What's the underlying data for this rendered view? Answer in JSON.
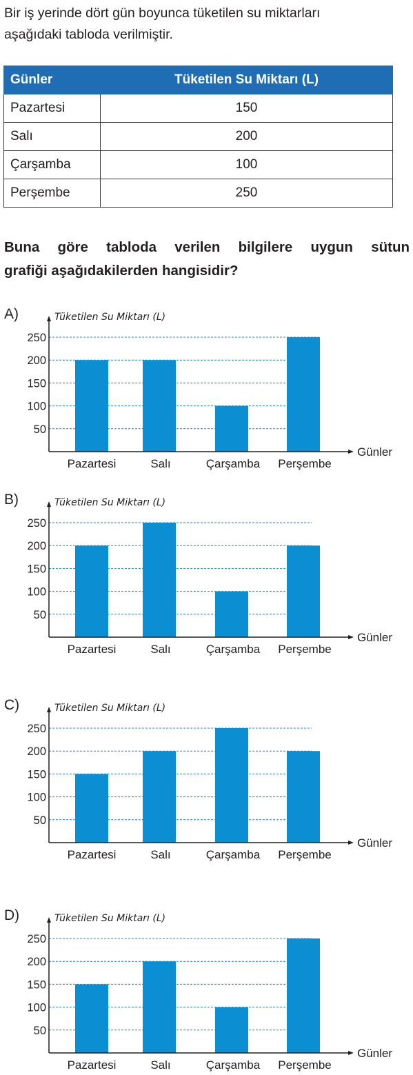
{
  "intro": {
    "line1": "Bir iş yerinde dört gün boyunca tüketilen su miktarları",
    "line2": "aşağıdaki tabloda verilmiştir."
  },
  "table": {
    "header": [
      "Günler",
      "Tüketilen Su Miktarı (L)"
    ],
    "rows": [
      [
        "Pazartesi",
        "150"
      ],
      [
        "Salı",
        "200"
      ],
      [
        "Çarşamba",
        "100"
      ],
      [
        "Perşembe",
        "250"
      ]
    ],
    "header_color": "#1f6db5"
  },
  "question": {
    "line1": "Buna göre tabloda verilen bilgilere uygun sütun",
    "line2": "grafiği aşağıdakilerden hangisidir?"
  },
  "bar_color": "#0b8fd2",
  "gridline_color": "#2a7fc1",
  "chart_data": [
    {
      "type": "bar",
      "option": "A)",
      "ylabel": "Tüketilen Su Miktarı (L)",
      "xlabel": "Günler",
      "categories": [
        "Pazartesi",
        "Salı",
        "Çarşamba",
        "Perşembe"
      ],
      "values": [
        200,
        200,
        100,
        250
      ],
      "yticks": [
        50,
        100,
        150,
        200,
        250
      ],
      "ylim": [
        0,
        250
      ],
      "grid": "dashed horizontal"
    },
    {
      "type": "bar",
      "option": "B)",
      "ylabel": "Tüketilen Su Miktarı (L)",
      "xlabel": "Günler",
      "categories": [
        "Pazartesi",
        "Salı",
        "Çarşamba",
        "Perşembe"
      ],
      "values": [
        200,
        250,
        100,
        200
      ],
      "yticks": [
        50,
        100,
        150,
        200,
        250
      ],
      "ylim": [
        0,
        250
      ],
      "grid": "dashed horizontal"
    },
    {
      "type": "bar",
      "option": "C)",
      "ylabel": "Tüketilen Su Miktarı (L)",
      "xlabel": "Günler",
      "categories": [
        "Pazartesi",
        "Salı",
        "Çarşamba",
        "Perşembe"
      ],
      "values": [
        150,
        200,
        250,
        200
      ],
      "yticks": [
        50,
        100,
        150,
        200,
        250
      ],
      "ylim": [
        0,
        250
      ],
      "grid": "dashed horizontal"
    },
    {
      "type": "bar",
      "option": "D)",
      "ylabel": "Tüketilen Su Miktarı (L)",
      "xlabel": "Günler",
      "categories": [
        "Pazartesi",
        "Salı",
        "Çarşamba",
        "Perşembe"
      ],
      "values": [
        150,
        200,
        100,
        250
      ],
      "yticks": [
        50,
        100,
        150,
        200,
        250
      ],
      "ylim": [
        0,
        250
      ],
      "grid": "dashed horizontal"
    }
  ]
}
